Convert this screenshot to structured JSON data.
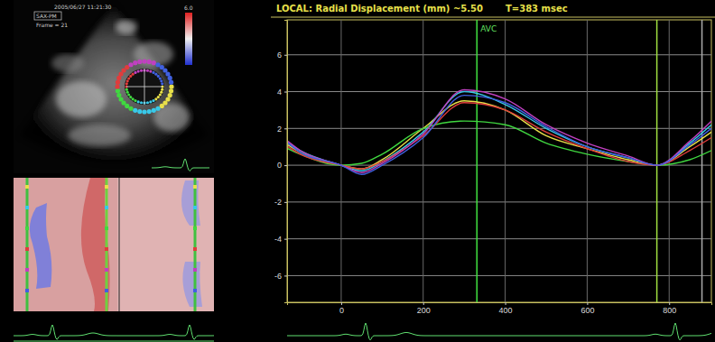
{
  "chart_data": {
    "type": "line",
    "title": "LOCAL: Radial Displacement (mm) ~5.50",
    "subtitle": "T=383 msec",
    "x": [
      -130,
      -100,
      0,
      50,
      100,
      200,
      300,
      400,
      500,
      600,
      700,
      770,
      850,
      903
    ],
    "xlim": [
      -132,
      903
    ],
    "xticks": [
      0,
      200,
      400,
      600,
      800
    ],
    "ylim": [
      -7.45,
      7.9
    ],
    "yticks": [
      -6,
      -4,
      -2,
      0,
      2,
      4,
      6
    ],
    "grid": true,
    "series": [
      {
        "color": "#e8e04a",
        "values": [
          1.1,
          0.7,
          0,
          -0.2,
          0.3,
          2.0,
          3.5,
          3.0,
          1.6,
          0.9,
          0.3,
          0,
          1.0,
          1.8
        ]
      },
      {
        "color": "#38c8e8",
        "values": [
          1.2,
          0.8,
          0,
          -0.3,
          0.2,
          1.8,
          4.0,
          3.3,
          2.0,
          1.0,
          0.4,
          0,
          1.2,
          2.2
        ]
      },
      {
        "color": "#40d840",
        "values": [
          0.9,
          0.6,
          0,
          0.1,
          0.6,
          2.0,
          2.4,
          2.2,
          1.2,
          0.6,
          0.2,
          0,
          0.3,
          0.8
        ]
      },
      {
        "color": "#e03c3c",
        "values": [
          1.0,
          0.6,
          0,
          -0.2,
          0.2,
          1.6,
          3.4,
          3.0,
          1.8,
          0.9,
          0.2,
          0,
          0.8,
          1.5
        ]
      },
      {
        "color": "#c040c0",
        "values": [
          1.3,
          0.8,
          0,
          -0.4,
          0.1,
          1.7,
          4.1,
          3.6,
          2.2,
          1.2,
          0.5,
          0,
          1.3,
          2.4
        ]
      },
      {
        "color": "#4060e0",
        "values": [
          1.2,
          0.7,
          0,
          -0.5,
          0.0,
          1.5,
          3.8,
          3.4,
          2.1,
          1.0,
          0.4,
          0,
          1.1,
          2.0
        ]
      }
    ],
    "annotations": [
      {
        "x": 331,
        "label": "AVC"
      },
      {
        "x": 770
      },
      {
        "x": 880
      }
    ]
  },
  "image_panel": {
    "labels": [
      "2005/06/27 11:21:30",
      "SAX-PM",
      "Frame = 21",
      "6.0"
    ]
  }
}
